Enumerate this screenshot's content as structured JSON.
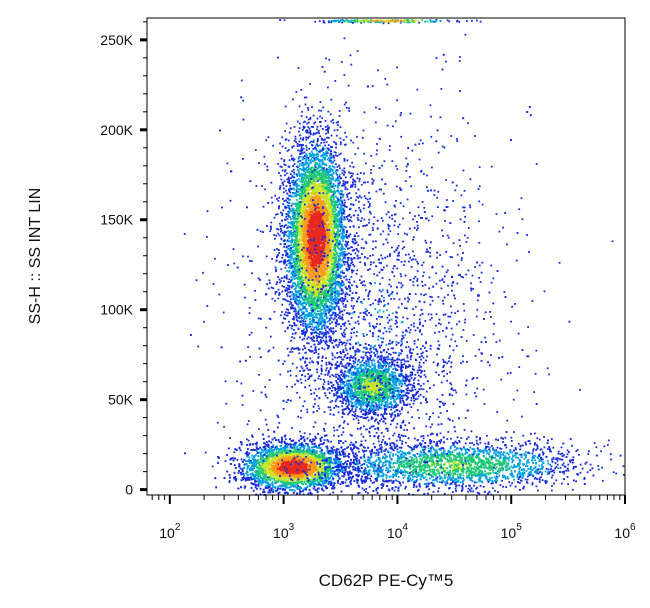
{
  "chart_data": {
    "type": "scatter",
    "style": "flow-cytometry density dot plot (pseudocolor)",
    "title": "",
    "xlabel": "CD62P PE-Cy™5",
    "ylabel": "SS-H :: SS INT LIN",
    "x_scale": "log",
    "xlim": [
      63,
      1000000
    ],
    "ylim": [
      -3000,
      262144
    ],
    "x_ticks": [
      {
        "value": 100,
        "base": "10",
        "exp": "2"
      },
      {
        "value": 1000,
        "base": "10",
        "exp": "3"
      },
      {
        "value": 10000,
        "base": "10",
        "exp": "4"
      },
      {
        "value": 100000,
        "base": "10",
        "exp": "5"
      },
      {
        "value": 1000000,
        "base": "10",
        "exp": "6"
      }
    ],
    "y_ticks": [
      {
        "value": 0,
        "label": "0"
      },
      {
        "value": 50000,
        "label": "50K"
      },
      {
        "value": 100000,
        "label": "100K"
      },
      {
        "value": 150000,
        "label": "150K"
      },
      {
        "value": 200000,
        "label": "200K"
      },
      {
        "value": 250000,
        "label": "250K"
      }
    ],
    "density_colors": [
      "#1a2dd8",
      "#00a0e0",
      "#1ec878",
      "#c8e628",
      "#ff9a1a",
      "#e6281e"
    ],
    "populations": [
      {
        "id": "granulocytes",
        "x_center": 1900,
        "y_center": 140000,
        "sd_log10x": 0.13,
        "sd_y": 26000,
        "n": 6500,
        "peak_density": 1.0
      },
      {
        "id": "monocytes",
        "x_center": 6000,
        "y_center": 58000,
        "sd_log10x": 0.17,
        "sd_y": 8500,
        "n": 1700,
        "peak_density": 0.55
      },
      {
        "id": "lymphocytes",
        "x_center": 1200,
        "y_center": 13000,
        "sd_log10x": 0.22,
        "sd_y": 6500,
        "n": 4800,
        "peak_density": 1.0
      },
      {
        "id": "cd62p-positive-tail",
        "x_center": 30000,
        "y_center": 14000,
        "sd_log10x": 0.55,
        "sd_y": 6500,
        "n": 2600,
        "peak_density": 0.5
      },
      {
        "id": "background",
        "x_center": 6000,
        "y_center": 90000,
        "sd_log10x": 0.55,
        "sd_y": 60000,
        "n": 2500,
        "peak_density": 0.15
      },
      {
        "id": "saturated-events",
        "x_center": 8000,
        "y_center": 261000,
        "sd_log10x": 0.3,
        "sd_y": 500,
        "n": 250,
        "peak_density": 0.8
      }
    ],
    "grid": false,
    "legend": "none"
  }
}
